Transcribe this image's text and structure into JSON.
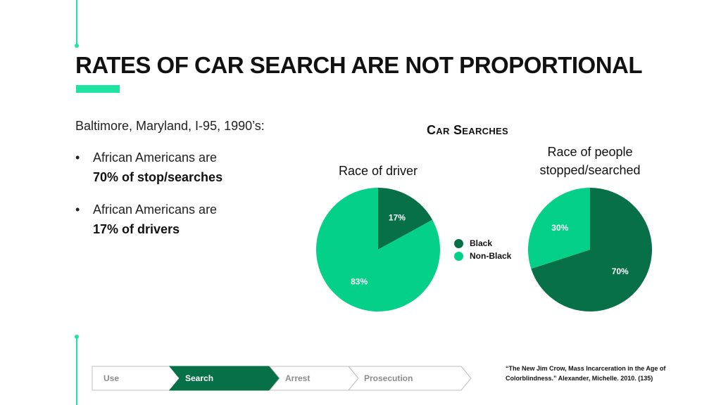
{
  "slide": {
    "title": "RATES OF CAR SEARCH ARE NOT PROPORTIONAL",
    "intro": "Baltimore, Maryland, I-95, 1990’s:",
    "bullets": [
      {
        "line1": "African Americans are",
        "line2": "70% of stop/searches"
      },
      {
        "line1": "African Americans are",
        "line2": "17% of drivers"
      }
    ],
    "citation": "“The New Jim Crow, Mass Incarceration in the Age of Colorblindness.” Alexander, Michelle. 2010. (135)"
  },
  "colors": {
    "accent": "#1fe3a0",
    "black_series": "#087047",
    "nonblack_series": "#05d08a",
    "process_active": "#087047",
    "process_inactive_text": "#8c8c8c",
    "process_border": "#bfbfbf"
  },
  "chart_data": {
    "type": "pie",
    "title": "Car Searches",
    "legend": {
      "position": "between-charts",
      "entries": [
        "Black",
        "Non-Black"
      ]
    },
    "charts": [
      {
        "title": "Race of driver",
        "slices": [
          {
            "label": "Black",
            "value": 17,
            "display": "17%"
          },
          {
            "label": "Non-Black",
            "value": 83,
            "display": "83%"
          }
        ]
      },
      {
        "title": "Race of people stopped/searched",
        "slices": [
          {
            "label": "Black",
            "value": 70,
            "display": "70%"
          },
          {
            "label": "Non-Black",
            "value": 30,
            "display": "30%"
          }
        ]
      }
    ]
  },
  "process": {
    "steps": [
      {
        "label": "Use",
        "active": false
      },
      {
        "label": "Search",
        "active": true
      },
      {
        "label": "Arrest",
        "active": false
      },
      {
        "label": "Prosecution",
        "active": false
      }
    ]
  }
}
